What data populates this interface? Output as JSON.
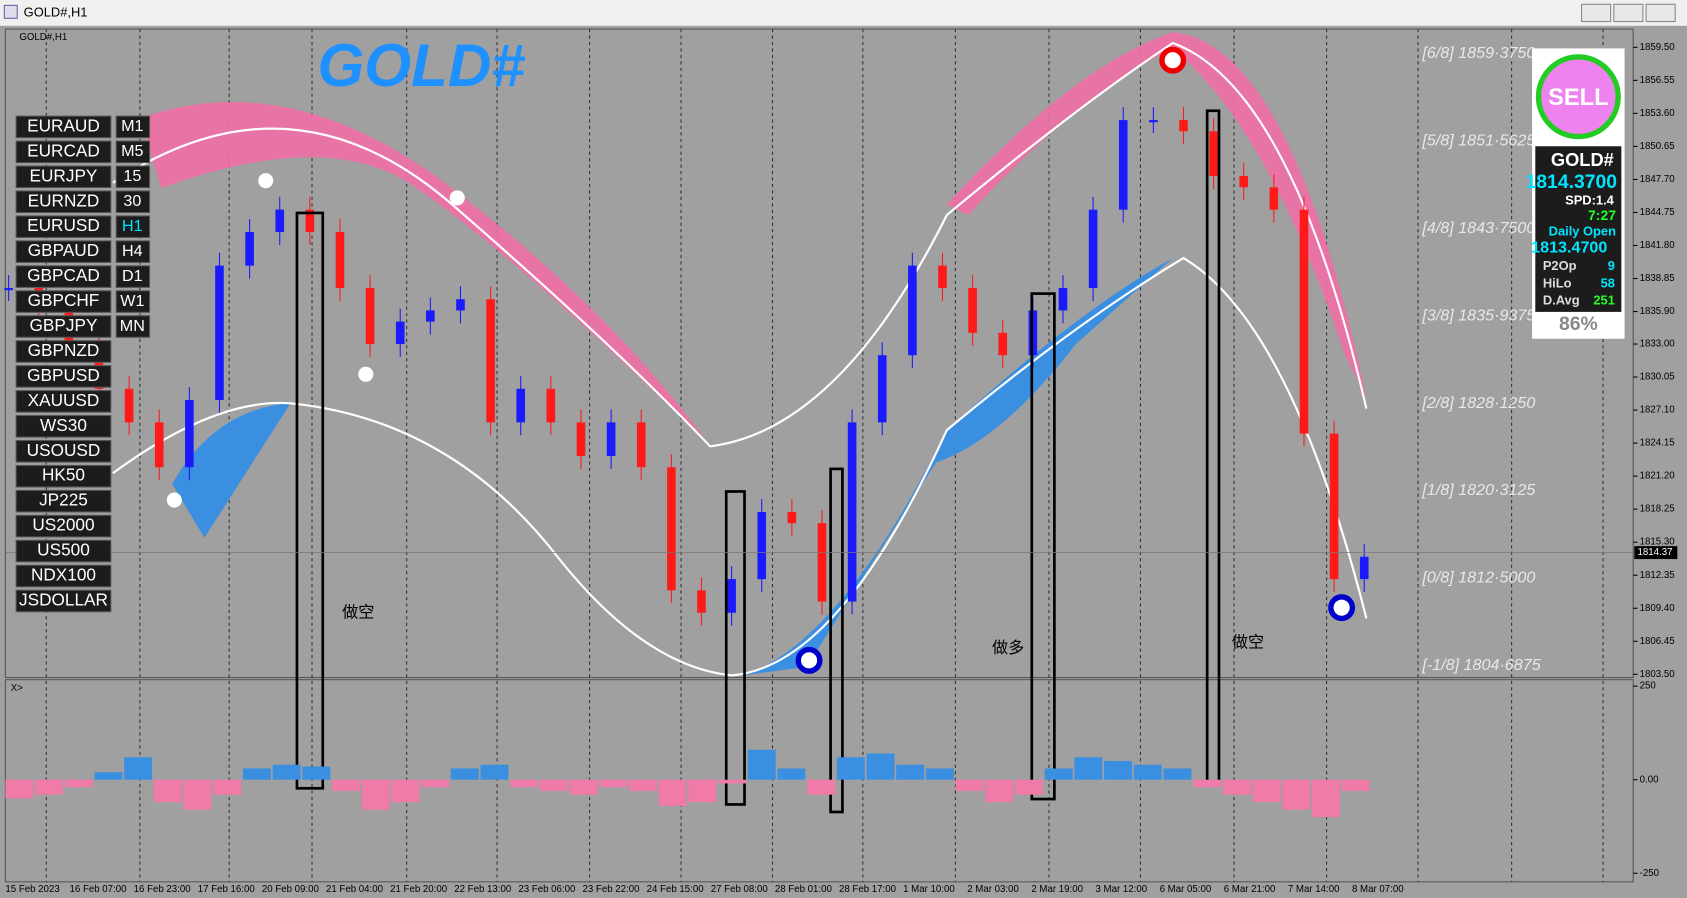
{
  "window": {
    "title": "GOLD#,H1"
  },
  "chart_label": "GOLD#,H1",
  "big_title": "GOLD#",
  "subwindow_label": "X>",
  "symbols": [
    "EURAUD",
    "EURCAD",
    "EURJPY",
    "EURNZD",
    "EURUSD",
    "GBPAUD",
    "GBPCAD",
    "GBPCHF",
    "GBPJPY",
    "GBPNZD",
    "GBPUSD",
    "XAUUSD",
    "WS30",
    "USOUSD",
    "HK50",
    "JP225",
    "US2000",
    "US500",
    "NDX100",
    "JSDOLLAR"
  ],
  "timeframes": [
    "M1",
    "M5",
    "15",
    "30",
    "H1",
    "H4",
    "D1",
    "W1",
    "MN"
  ],
  "levels": [
    "[6/8] 1859·3750",
    "[5/8] 1851·5625",
    "[4/8] 1843·7500",
    "[3/8] 1835·9375",
    "[2/8] 1828·1250",
    "[1/8] 1820·3125",
    "[0/8] 1812·5000",
    "[-1/8] 1804·6875"
  ],
  "annotations": [
    "做空",
    "做多",
    "做空"
  ],
  "panel": {
    "signal": "SELL",
    "symbol": "GOLD#",
    "price": "1814.3700",
    "spread": "SPD:1.4",
    "timer": "7:27",
    "daily_open_label": "Daily Open",
    "daily_open": "1813.4700",
    "stats": [
      {
        "label": "P2Op",
        "value": 9
      },
      {
        "label": "HiLo",
        "value": 58
      },
      {
        "label": "D.Avg",
        "value": 251
      }
    ],
    "percent": "86%"
  },
  "chart_data": {
    "type": "candlestick",
    "ylim": [
      1803.5,
      1859.5
    ],
    "yticks": [
      {
        "value": 1859.5,
        "label": "1859.50"
      },
      {
        "value": 1856.55,
        "label": "1856.55"
      },
      {
        "value": 1853.6,
        "label": "1853.60"
      },
      {
        "value": 1850.65,
        "label": "1850.65"
      },
      {
        "value": 1847.7,
        "label": "1847.70"
      },
      {
        "value": 1844.75,
        "label": "1844.75"
      },
      {
        "value": 1841.8,
        "label": "1841.80"
      },
      {
        "value": 1838.85,
        "label": "1838.85"
      },
      {
        "value": 1835.9,
        "label": "1835.90"
      },
      {
        "value": 1833.0,
        "label": "1833.00"
      },
      {
        "value": 1830.05,
        "label": "1830.05"
      },
      {
        "value": 1827.1,
        "label": "1827.10"
      },
      {
        "value": 1824.15,
        "label": "1824.15"
      },
      {
        "value": 1821.2,
        "label": "1821.20"
      },
      {
        "value": 1818.25,
        "label": "1818.25"
      },
      {
        "value": 1815.3,
        "label": "1815.30"
      },
      {
        "value": 1812.35,
        "label": "1812.35"
      },
      {
        "value": 1809.4,
        "label": "1809.40"
      },
      {
        "value": 1806.45,
        "label": "1806.45"
      },
      {
        "value": 1803.5,
        "label": "1803.50"
      }
    ],
    "current_price": 1814.37,
    "x_labels": [
      "15 Feb 2023",
      "16 Feb 07:00",
      "16 Feb 23:00",
      "17 Feb 16:00",
      "20 Feb 09:00",
      "21 Feb 04:00",
      "21 Feb 20:00",
      "22 Feb 13:00",
      "23 Feb 06:00",
      "23 Feb 22:00",
      "24 Feb 15:00",
      "27 Feb 08:00",
      "28 Feb 01:00",
      "28 Feb 17:00",
      "1 Mar 10:00",
      "2 Mar 03:00",
      "2 Mar 19:00",
      "3 Mar 12:00",
      "6 Mar 05:00",
      "6 Mar 21:00",
      "7 Mar 14:00",
      "8 Mar 07:00"
    ],
    "closes": [
      1838,
      1836,
      1833,
      1829,
      1826,
      1822,
      1828,
      1840,
      1843,
      1845,
      1843,
      1838,
      1833,
      1835,
      1836,
      1837,
      1826,
      1829,
      1826,
      1823,
      1826,
      1822,
      1811,
      1809,
      1812,
      1818,
      1817,
      1810,
      1826,
      1832,
      1840,
      1838,
      1834,
      1832,
      1836,
      1838,
      1845,
      1853,
      1853,
      1852,
      1848,
      1847,
      1845,
      1825,
      1812,
      1814
    ],
    "osc_ylim": [
      -250,
      250
    ],
    "osc_yticks": [
      250,
      {
        "value": 0,
        "label": "0.00"
      },
      -250
    ],
    "oscillator": [
      -50,
      -40,
      -20,
      20,
      60,
      -60,
      -80,
      -40,
      30,
      40,
      35,
      -30,
      -80,
      -60,
      -20,
      30,
      40,
      -20,
      -30,
      -40,
      -20,
      -30,
      -70,
      -60,
      -10,
      80,
      30,
      -40,
      60,
      70,
      40,
      30,
      -30,
      -60,
      -40,
      30,
      60,
      50,
      40,
      30,
      -20,
      -40,
      -60,
      -80,
      -100,
      -30
    ],
    "up_color": "#1a1aff",
    "down_color": "#ff1a1a",
    "osc_up_color": "#3a8fe0",
    "osc_down_color": "#f07aa8"
  }
}
